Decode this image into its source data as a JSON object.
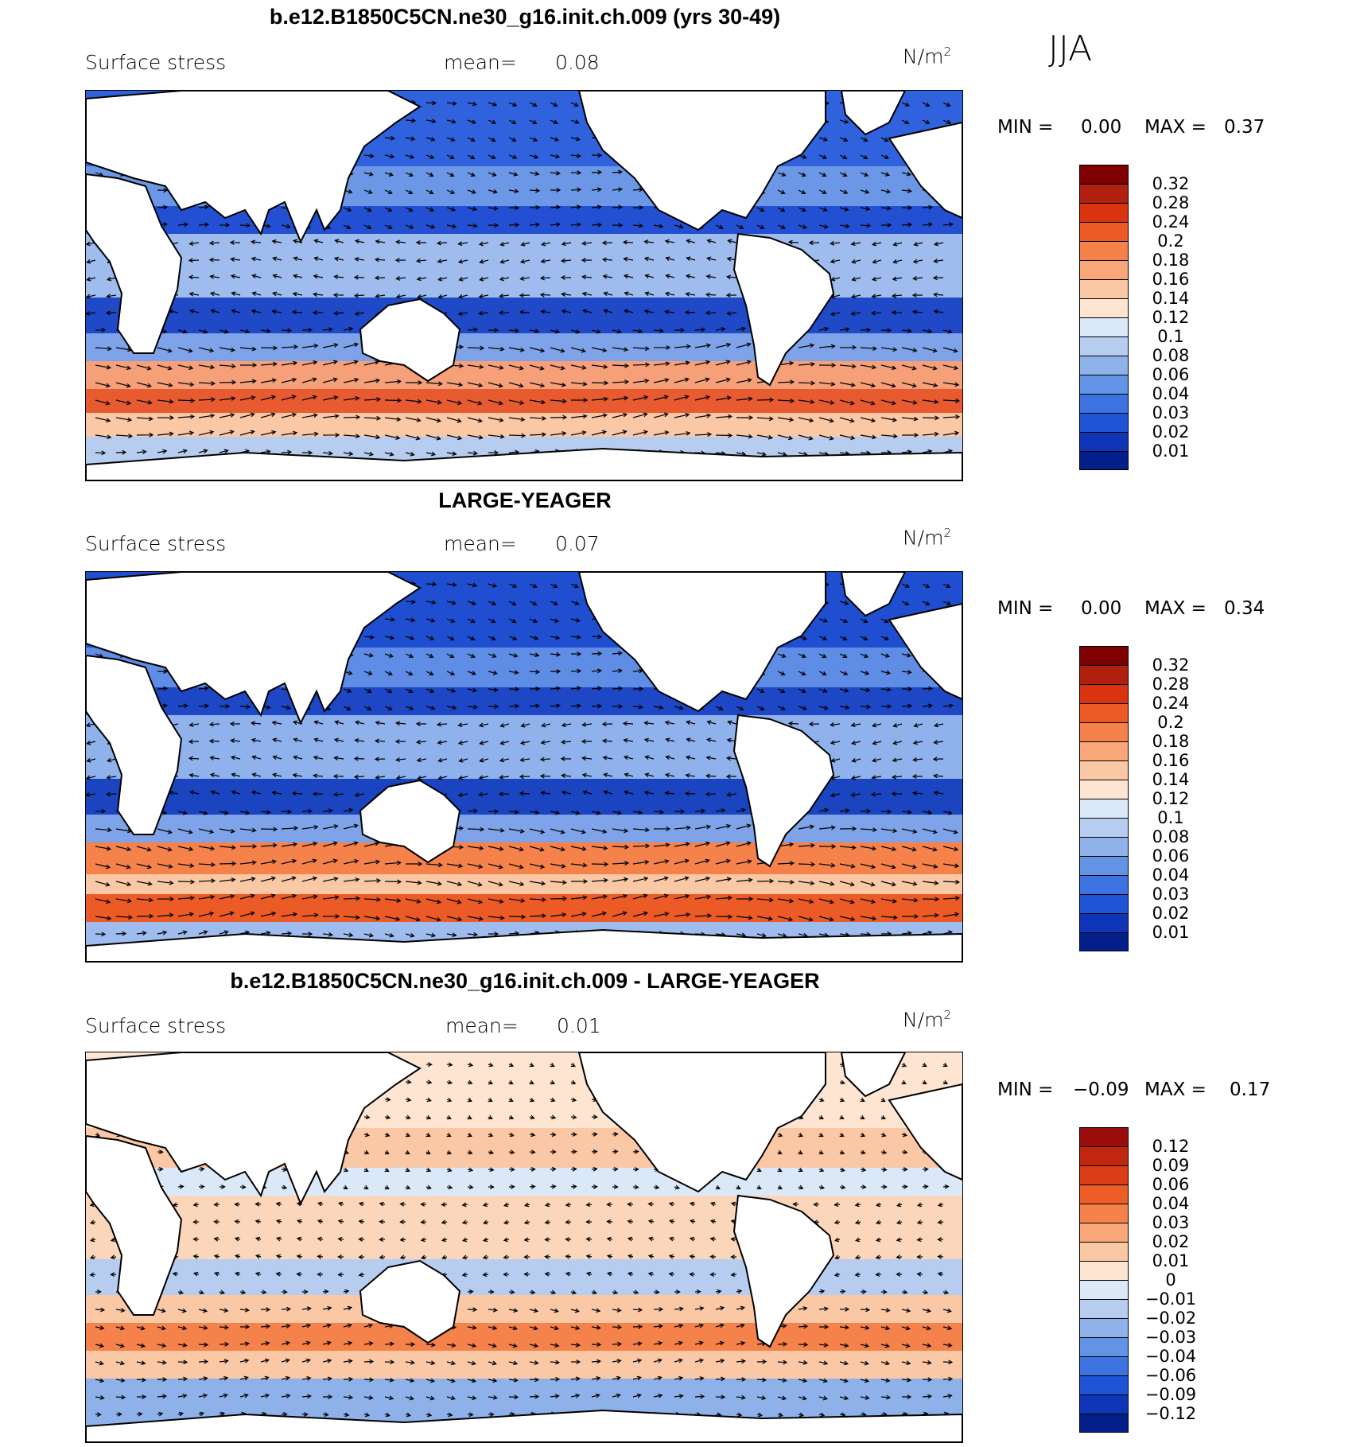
{
  "season": "JJA",
  "chart_data": [
    {
      "type": "heatmap",
      "title": "b.e12.B1850C5CN.ne30_g16.init.ch.009 (yrs 30-49)",
      "variable": "Surface stress",
      "mean_label": "mean=",
      "mean_value": "0.08",
      "units": "N/m",
      "units_sup": "2",
      "min_label": "MIN =",
      "min_value": "0.00",
      "max_label": "MAX =",
      "max_value": "0.37",
      "colorbar": {
        "labels": [
          "0.32",
          "0.28",
          "0.24",
          "0.2",
          "0.18",
          "0.16",
          "0.14",
          "0.12",
          "0.1",
          "0.08",
          "0.06",
          "0.04",
          "0.03",
          "0.02",
          "0.01"
        ],
        "colors": [
          "#7f0000",
          "#b1200e",
          "#d9340f",
          "#ec5a25",
          "#f5824a",
          "#f9a678",
          "#fbc8a6",
          "#fde5d2",
          "#dbe8f7",
          "#b6cdf0",
          "#8eb1ea",
          "#6293e4",
          "#3c73e0",
          "#1f53d6",
          "#0e35b8",
          "#041f8a"
        ]
      }
    },
    {
      "type": "heatmap",
      "title": "LARGE-YEAGER",
      "variable": "Surface stress",
      "mean_label": "mean=",
      "mean_value": "0.07",
      "units": "N/m",
      "units_sup": "2",
      "min_label": "MIN =",
      "min_value": "0.00",
      "max_label": "MAX =",
      "max_value": "0.34",
      "colorbar": {
        "labels": [
          "0.32",
          "0.28",
          "0.24",
          "0.2",
          "0.18",
          "0.16",
          "0.14",
          "0.12",
          "0.1",
          "0.08",
          "0.06",
          "0.04",
          "0.03",
          "0.02",
          "0.01"
        ],
        "colors": [
          "#7f0000",
          "#b1200e",
          "#d9340f",
          "#ec5a25",
          "#f5824a",
          "#f9a678",
          "#fbc8a6",
          "#fde5d2",
          "#dbe8f7",
          "#b6cdf0",
          "#8eb1ea",
          "#6293e4",
          "#3c73e0",
          "#1f53d6",
          "#0e35b8",
          "#041f8a"
        ]
      }
    },
    {
      "type": "heatmap",
      "title": "b.e12.B1850C5CN.ne30_g16.init.ch.009 - LARGE-YEAGER",
      "variable": "Surface stress",
      "mean_label": "mean=",
      "mean_value": "0.01",
      "units": "N/m",
      "units_sup": "2",
      "min_label": "MIN =",
      "min_value": "−0.09",
      "max_label": "MAX =",
      "max_value": "0.17",
      "colorbar": {
        "labels": [
          "0.12",
          "0.09",
          "0.06",
          "0.04",
          "0.03",
          "0.02",
          "0.01",
          "0",
          "−0.01",
          "−0.02",
          "−0.03",
          "−0.04",
          "−0.06",
          "−0.09",
          "−0.12"
        ],
        "colors": [
          "#9b0d0d",
          "#c2260f",
          "#db3d16",
          "#ec5d28",
          "#f5824a",
          "#f9a678",
          "#fbc8a6",
          "#fde5d2",
          "#dbe8f7",
          "#b6cdf0",
          "#8eb1ea",
          "#6293e4",
          "#3c73e0",
          "#1f53d6",
          "#0e35b8",
          "#041f8a"
        ]
      }
    }
  ]
}
